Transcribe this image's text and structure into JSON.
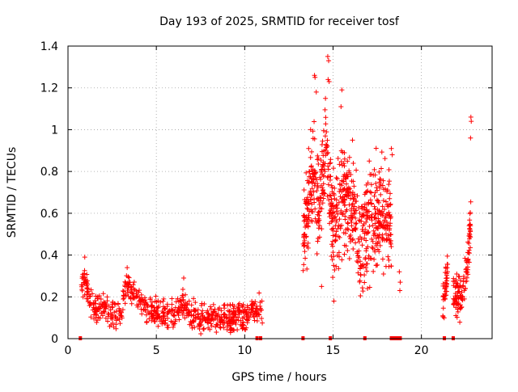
{
  "chart_data": {
    "type": "scatter",
    "title": "Day 193 of 2025, SRMTID for receiver tosf",
    "xlabel": "GPS time / hours",
    "ylabel": "SRMTID / TECUs",
    "xlim": [
      0,
      24
    ],
    "ylim": [
      0,
      1.4
    ],
    "xticks": [
      "0",
      "5",
      "10",
      "15",
      "20"
    ],
    "xtick_values": [
      0,
      5,
      10,
      15,
      20
    ],
    "yticks": [
      "0",
      "0.2",
      "0.4",
      "0.6",
      "0.8",
      "1",
      "1.2",
      "1.4"
    ],
    "ytick_values": [
      0,
      0.2,
      0.4,
      0.6,
      0.8,
      1.0,
      1.2,
      1.4
    ],
    "grid": true,
    "series": [
      {
        "name": "SRMTID",
        "color": "#ff0000",
        "marker": "plus",
        "segments": [
          {
            "x_start": 0.75,
            "x_end": 11.0,
            "profile": [
              [
                0.75,
                0.24
              ],
              [
                1.0,
                0.28
              ],
              [
                1.2,
                0.18
              ],
              [
                1.6,
                0.14
              ],
              [
                2.0,
                0.16
              ],
              [
                2.5,
                0.12
              ],
              [
                3.0,
                0.11
              ],
              [
                3.3,
                0.25
              ],
              [
                3.7,
                0.22
              ],
              [
                4.2,
                0.16
              ],
              [
                5.0,
                0.12
              ],
              [
                6.0,
                0.11
              ],
              [
                6.5,
                0.17
              ],
              [
                7.0,
                0.11
              ],
              [
                8.0,
                0.1
              ],
              [
                9.0,
                0.1
              ],
              [
                10.0,
                0.11
              ],
              [
                10.6,
                0.14
              ],
              [
                11.0,
                0.14
              ]
            ],
            "spread": 0.04,
            "count": 700
          },
          {
            "x_start": 13.3,
            "x_end": 18.3,
            "profile": [
              [
                13.3,
                0.45
              ],
              [
                13.8,
                0.8
              ],
              [
                14.2,
                0.62
              ],
              [
                14.6,
                0.95
              ],
              [
                15.0,
                0.55
              ],
              [
                15.6,
                0.65
              ],
              [
                16.2,
                0.6
              ],
              [
                16.5,
                0.45
              ],
              [
                17.0,
                0.55
              ],
              [
                17.5,
                0.6
              ],
              [
                18.0,
                0.6
              ],
              [
                18.3,
                0.55
              ]
            ],
            "spread": 0.15,
            "count": 700
          },
          {
            "x_start": 21.2,
            "x_end": 21.5,
            "profile": [
              [
                21.2,
                0.15
              ],
              [
                21.5,
                0.35
              ]
            ],
            "spread": 0.06,
            "count": 40
          },
          {
            "x_start": 21.8,
            "x_end": 22.8,
            "profile": [
              [
                21.8,
                0.22
              ],
              [
                22.3,
                0.2
              ],
              [
                22.6,
                0.35
              ],
              [
                22.8,
                0.6
              ]
            ],
            "spread": 0.06,
            "count": 120
          }
        ],
        "highlights": [
          {
            "x": 14.7,
            "y": 1.35
          },
          {
            "x": 14.75,
            "y": 1.33
          },
          {
            "x": 14.72,
            "y": 1.24
          },
          {
            "x": 14.78,
            "y": 1.23
          },
          {
            "x": 13.95,
            "y": 1.26
          },
          {
            "x": 13.98,
            "y": 1.25
          },
          {
            "x": 14.05,
            "y": 1.18
          },
          {
            "x": 15.5,
            "y": 1.19
          },
          {
            "x": 15.45,
            "y": 1.11
          },
          {
            "x": 22.8,
            "y": 1.06
          },
          {
            "x": 22.82,
            "y": 1.04
          },
          {
            "x": 22.78,
            "y": 0.96
          },
          {
            "x": 16.1,
            "y": 0.95
          },
          {
            "x": 18.3,
            "y": 0.91
          },
          {
            "x": 18.35,
            "y": 0.88
          },
          {
            "x": 0.95,
            "y": 0.39
          },
          {
            "x": 3.35,
            "y": 0.34
          },
          {
            "x": 6.55,
            "y": 0.29
          },
          {
            "x": 18.75,
            "y": 0.32
          },
          {
            "x": 18.8,
            "y": 0.27
          },
          {
            "x": 18.78,
            "y": 0.23
          },
          {
            "x": 15.05,
            "y": 0.18
          },
          {
            "x": 16.95,
            "y": 0.24
          },
          {
            "x": 14.35,
            "y": 0.25
          }
        ],
        "zero_markers": [
          0.7,
          10.7,
          10.9,
          13.3,
          14.85,
          16.8,
          18.3,
          18.4,
          18.5,
          18.6,
          18.7,
          18.8,
          21.3,
          21.8
        ]
      }
    ]
  }
}
